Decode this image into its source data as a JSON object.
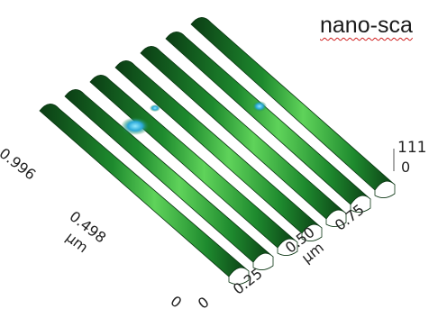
{
  "caption": "nano-sca",
  "z_axis": {
    "max_label": "111",
    "min_label": "0"
  },
  "y_axis": {
    "ticks": [
      "0.996",
      "0.498",
      "0"
    ],
    "unit": "µm"
  },
  "x_axis": {
    "ticks": [
      "0",
      "0.25",
      "0.50",
      "0.75"
    ],
    "unit": "µm"
  },
  "surface": {
    "ridge_count": 7,
    "colors": {
      "ridge": "#1e8a2e",
      "highlight": "#5fd35a",
      "shadow": "#0b3d14",
      "defect": "#2aa8d8"
    }
  }
}
